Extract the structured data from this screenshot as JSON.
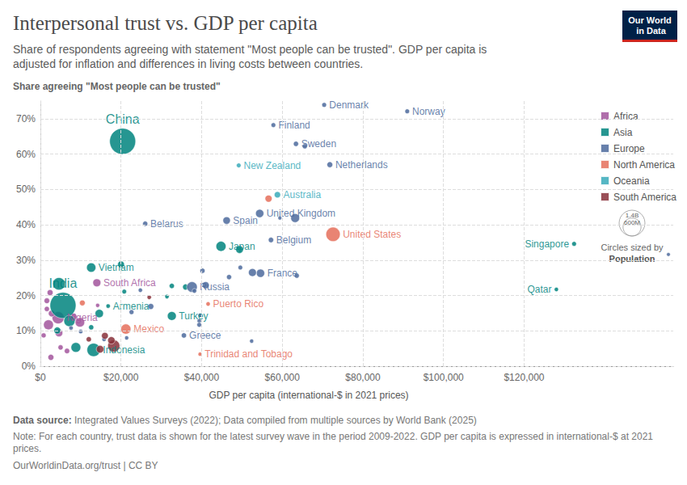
{
  "chart_data": {
    "type": "scatter",
    "marker": "circle",
    "grid": true,
    "legend": "right",
    "title": "Interpersonal trust vs. GDP per capita",
    "subtitle": "Share of respondents agreeing with statement \"Most people can be trusted\". GDP per capita is adjusted for inflation and differences in living costs between countries.",
    "ylabel": "Share agreeing \"Most people can be trusted\"",
    "xlabel": "GDP per capita (international-$ in 2021 prices)",
    "source_label": "Data source:",
    "source": "Integrated Values Surveys (2022); Data compiled from multiple sources by World Bank (2025)",
    "note": "Note: For each country, trust data is shown for the latest survey wave in the period 2009-2022. GDP per capita is expressed in international-$ at 2021 prices.",
    "footer": "OurWorldinData.org/trust | CC BY",
    "logo": "Our World in Data",
    "size_legend_title": "Circles sized by",
    "size_legend_variable": "Population",
    "size_legend": [
      {
        "value": 1400000000,
        "label": "1.4B"
      },
      {
        "value": 600000000,
        "label": "600M"
      }
    ],
    "xlim": [
      0,
      157000
    ],
    "xticks": [
      {
        "value": 0,
        "label": "$0"
      },
      {
        "value": 20000,
        "label": "$20,000"
      },
      {
        "value": 40000,
        "label": "$40,000"
      },
      {
        "value": 60000,
        "label": "$60,000"
      },
      {
        "value": 80000,
        "label": "$80,000"
      },
      {
        "value": 100000,
        "label": "$100,000"
      },
      {
        "value": 120000,
        "label": "$120,000"
      }
    ],
    "ylim": [
      0,
      75
    ],
    "yticks": [
      {
        "value": 0,
        "label": "0%"
      },
      {
        "value": 10,
        "label": "10%"
      },
      {
        "value": 20,
        "label": "20%"
      },
      {
        "value": 30,
        "label": "30%"
      },
      {
        "value": 40,
        "label": "40%"
      },
      {
        "value": 50,
        "label": "50%"
      },
      {
        "value": 60,
        "label": "60%"
      },
      {
        "value": 70,
        "label": "70%"
      }
    ],
    "series": [
      {
        "name": "Africa",
        "color": "#a2559c",
        "x": [
          14000,
          4400,
          2000,
          9800,
          2400,
          1600,
          2800,
          4600,
          5000,
          2600,
          1600,
          8200,
          14200,
          6600,
          800
        ],
        "values": [
          23.6,
          13.7,
          11.7,
          12.4,
          20.8,
          18.5,
          14.9,
          9.4,
          5.3,
          2.5,
          16.2,
          14.0,
          17.2,
          4.3,
          8.7
        ],
        "population": [
          60000000,
          213000000,
          120000000,
          105000000,
          20000000,
          15000000,
          30000000,
          50000000,
          10000000,
          20000000,
          10000000,
          37000000,
          2000000,
          12000000,
          8000000
        ],
        "labels": [
          "South Africa",
          "Nigeria",
          null,
          null,
          null,
          null,
          null,
          null,
          null,
          null,
          null,
          null,
          null,
          null,
          null
        ]
      },
      {
        "name": "Asia",
        "color": "#00847e",
        "x": [
          20400,
          5600,
          4600,
          12600,
          20000,
          44800,
          49400,
          16800,
          32600,
          13200,
          132400,
          128000,
          14600,
          7200,
          8800,
          4200,
          12600,
          20800,
          32600,
          31400,
          36000
        ],
        "values": [
          63.6,
          17.2,
          23.3,
          27.9,
          28.8,
          33.9,
          33.0,
          17.0,
          14.2,
          4.6,
          34.6,
          21.7,
          14.9,
          12.8,
          5.3,
          10.1,
          11.0,
          21.1,
          22.7,
          19.7,
          22.4
        ],
        "population": [
          1412000000,
          1408000000,
          231000000,
          98000000,
          33000000,
          125000000,
          52000000,
          3000000,
          85000000,
          275000000,
          5500000,
          2700000,
          70000000,
          170000000,
          115000000,
          35000000,
          10000000,
          5000000,
          10000000,
          3000000,
          19000000
        ],
        "labels": [
          "China",
          "India",
          null,
          "Vietnam",
          null,
          "Japan",
          null,
          "Armenia",
          "Turkey",
          "Indonesia",
          "Singapore",
          "Qatar",
          null,
          null,
          null,
          null,
          null,
          null,
          null,
          null,
          null
        ]
      },
      {
        "name": "Europe",
        "color": "#4c6a9c",
        "x": [
          70400,
          91000,
          57800,
          63400,
          65600,
          71800,
          26000,
          46200,
          54400,
          59400,
          63200,
          57200,
          54600,
          52600,
          37600,
          35600,
          40200,
          46800,
          41000,
          38200,
          39600,
          39400,
          39400,
          49600,
          52400,
          7600,
          10000,
          21400,
          15800,
          22600,
          24800,
          27400,
          63600,
          155800
        ],
        "values": [
          73.9,
          72.1,
          68.2,
          62.9,
          62.2,
          57.0,
          40.3,
          41.2,
          43.2,
          41.9,
          41.9,
          35.7,
          26.3,
          26.5,
          22.4,
          8.7,
          27.0,
          25.2,
          22.9,
          21.3,
          14.4,
          12.8,
          11.7,
          27.9,
          7.1,
          10.8,
          9.8,
          8.0,
          7.6,
          15.3,
          21.5,
          16.9,
          25.6,
          31.6
        ],
        "population": [
          5900000,
          5400000,
          5500000,
          10400000,
          8700000,
          17500000,
          9300000,
          47000000,
          67000000,
          1000000,
          83000000,
          11600000,
          68000000,
          59000000,
          144000000,
          10400000,
          10000000,
          9000000,
          38000000,
          5000000,
          2000000,
          3000000,
          6000000,
          5000000,
          2000000,
          3000000,
          2800000,
          2000000,
          3700000,
          7000000,
          3000000,
          19000000,
          9000000,
          650000
        ],
        "labels": [
          "Denmark",
          "Norway",
          "Finland",
          "Sweden",
          null,
          "Netherlands",
          "Belarus",
          "Spain",
          "United Kingdom",
          null,
          null,
          "Belgium",
          "France",
          null,
          "Russia",
          "Greece",
          null,
          null,
          null,
          null,
          null,
          null,
          null,
          null,
          null,
          null,
          null,
          null,
          null,
          null,
          null,
          null,
          null,
          null
        ]
      },
      {
        "name": "North America",
        "color": "#e56e5a",
        "x": [
          72600,
          56600,
          21200,
          41600,
          39600,
          10400
        ],
        "values": [
          37.3,
          47.4,
          10.5,
          17.6,
          3.4,
          17.9
        ],
        "population": [
          333000000,
          38000000,
          127000000,
          3300000,
          1500000,
          17000000
        ],
        "labels": [
          "United States",
          null,
          "Mexico",
          "Puerto Rico",
          "Trinidad and Tobago",
          null
        ]
      },
      {
        "name": "Oceania",
        "color": "#38aaba",
        "x": [
          49200,
          58800
        ],
        "values": [
          56.8,
          48.5
        ],
        "population": [
          5100000,
          26000000
        ],
        "labels": [
          "New Zealand",
          "Australia"
        ]
      },
      {
        "name": "South America",
        "color": "#883039",
        "x": [
          27000,
          18200,
          17600,
          14800,
          12000,
          16000
        ],
        "values": [
          19.5,
          5.7,
          7.3,
          4.8,
          7.6,
          8.6
        ],
        "population": [
          3400000,
          215000000,
          46000000,
          51000000,
          11000000,
          33000000
        ],
        "labels": [
          null,
          null,
          null,
          null,
          null,
          null
        ]
      }
    ]
  }
}
